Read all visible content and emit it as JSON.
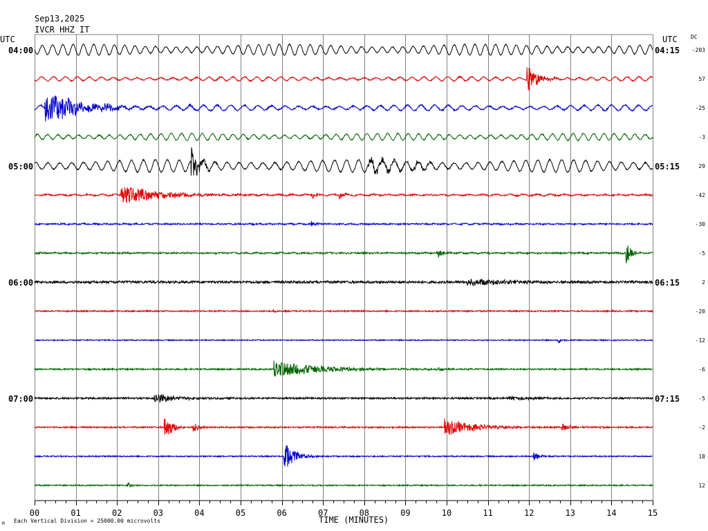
{
  "header": {
    "date": "Sep13,2025",
    "station": "IVCR HHZ IT"
  },
  "left_label_header": "UTC",
  "right_label_header": "UTC",
  "dc_header": "DC",
  "footer": {
    "xlabel": "TIME (MINUTES)",
    "scale_note": "Each Vertical Division = 25000.00 microvolts",
    "corner_mark": "M"
  },
  "colors": {
    "grid": "#808080",
    "trace_cycle": [
      "#000000",
      "#e00000",
      "#0000c8",
      "#006400"
    ]
  },
  "chart_data": {
    "type": "line",
    "title": "",
    "xlabel": "TIME (MINUTES)",
    "xlim": [
      0,
      15
    ],
    "x_ticks": [
      "00",
      "01",
      "02",
      "03",
      "04",
      "05",
      "06",
      "07",
      "08",
      "09",
      "10",
      "11",
      "12",
      "13",
      "14",
      "15"
    ],
    "grid": true,
    "left_time_labels": [
      {
        "row": 0,
        "label": "04:00"
      },
      {
        "row": 4,
        "label": "05:00"
      },
      {
        "row": 8,
        "label": "06:00"
      },
      {
        "row": 12,
        "label": "07:00"
      }
    ],
    "right_time_labels": [
      {
        "row": 0,
        "label": "04:15"
      },
      {
        "row": 4,
        "label": "05:15"
      },
      {
        "row": 8,
        "label": "06:15"
      },
      {
        "row": 12,
        "label": "07:15"
      }
    ],
    "dc_offsets": [
      "-203",
      "57",
      "-25",
      "-3",
      "29",
      "-42",
      "-30",
      "-5",
      "2",
      "-20",
      "-12",
      "-6",
      "-5",
      "-2",
      "18",
      "12"
    ],
    "series": [
      {
        "wave": 8,
        "noise": 0.6,
        "events": []
      },
      {
        "wave": 3,
        "noise": 0.8,
        "events": [
          {
            "t": 11.95,
            "amp": 22,
            "dur": 0.4
          }
        ]
      },
      {
        "wave": 4,
        "noise": 1.0,
        "events": [
          {
            "t": 0.25,
            "amp": 26,
            "dur": 1.2
          },
          {
            "t": 1.7,
            "amp": 6,
            "dur": 0.3
          },
          {
            "t": 3.7,
            "amp": 4,
            "dur": 0.2
          }
        ]
      },
      {
        "wave": 5,
        "noise": 0.8,
        "events": []
      },
      {
        "wave": 9,
        "noise": 0.8,
        "events": [
          {
            "t": 3.8,
            "amp": 24,
            "dur": 0.3
          },
          {
            "t": 8.1,
            "amp": 8,
            "dur": 1.0
          },
          {
            "t": 9.2,
            "amp": 5,
            "dur": 0.4
          }
        ]
      },
      {
        "wave": 1,
        "noise": 1.0,
        "events": [
          {
            "t": 2.1,
            "amp": 14,
            "dur": 1.6
          },
          {
            "t": 6.7,
            "amp": 6,
            "dur": 0.2
          },
          {
            "t": 7.4,
            "amp": 6,
            "dur": 0.2
          }
        ]
      },
      {
        "wave": 0.5,
        "noise": 1.0,
        "events": [
          {
            "t": 6.7,
            "amp": 5,
            "dur": 0.3
          }
        ]
      },
      {
        "wave": 0.5,
        "noise": 1.1,
        "events": [
          {
            "t": 9.8,
            "amp": 6,
            "dur": 0.2
          },
          {
            "t": 14.35,
            "amp": 18,
            "dur": 0.2
          }
        ]
      },
      {
        "wave": 0,
        "noise": 1.8,
        "events": [
          {
            "t": 10.5,
            "amp": 5,
            "dur": 1.8
          }
        ]
      },
      {
        "wave": 0,
        "noise": 1.0,
        "events": [
          {
            "t": 5.8,
            "amp": 4,
            "dur": 0.1
          }
        ]
      },
      {
        "wave": 0,
        "noise": 0.8,
        "events": [
          {
            "t": 12.7,
            "amp": 5,
            "dur": 0.2
          }
        ]
      },
      {
        "wave": 0,
        "noise": 1.1,
        "events": [
          {
            "t": 5.8,
            "amp": 13,
            "dur": 1.8
          },
          {
            "t": 9.8,
            "amp": 4,
            "dur": 0.2
          }
        ]
      },
      {
        "wave": 0,
        "noise": 1.3,
        "events": [
          {
            "t": 2.9,
            "amp": 8,
            "dur": 0.8
          },
          {
            "t": 11.5,
            "amp": 3,
            "dur": 1.0
          }
        ]
      },
      {
        "wave": 0,
        "noise": 1.1,
        "events": [
          {
            "t": 3.15,
            "amp": 20,
            "dur": 0.3
          },
          {
            "t": 3.85,
            "amp": 10,
            "dur": 0.15
          },
          {
            "t": 9.95,
            "amp": 12,
            "dur": 1.2
          },
          {
            "t": 12.8,
            "amp": 6,
            "dur": 0.4
          }
        ]
      },
      {
        "wave": 0,
        "noise": 0.9,
        "events": [
          {
            "t": 6.05,
            "amp": 24,
            "dur": 0.4
          },
          {
            "t": 12.1,
            "amp": 6,
            "dur": 0.3
          }
        ]
      },
      {
        "wave": 0,
        "noise": 0.9,
        "events": [
          {
            "t": 2.25,
            "amp": 8,
            "dur": 0.1
          }
        ]
      }
    ]
  }
}
